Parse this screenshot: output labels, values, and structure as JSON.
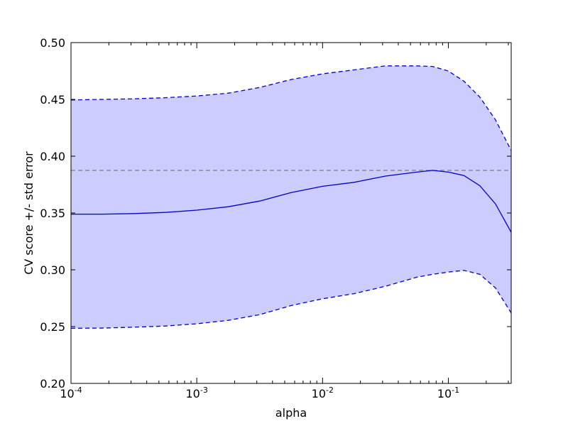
{
  "chart_data": {
    "type": "area",
    "title": "",
    "xlabel": "alpha",
    "ylabel": "CV score +/- std error",
    "x_scale": "log",
    "xlim": [
      0.0001,
      0.316
    ],
    "ylim": [
      0.2,
      0.5
    ],
    "grid": false,
    "legend": "none",
    "x_ticks": [
      {
        "value": 0.0001,
        "base": "10",
        "exp": "-4"
      },
      {
        "value": 0.001,
        "base": "10",
        "exp": "-3"
      },
      {
        "value": 0.01,
        "base": "10",
        "exp": "-2"
      },
      {
        "value": 0.1,
        "base": "10",
        "exp": "-1"
      }
    ],
    "y_ticks": [
      {
        "value": 0.2,
        "label": "0.20"
      },
      {
        "value": 0.25,
        "label": "0.25"
      },
      {
        "value": 0.3,
        "label": "0.30"
      },
      {
        "value": 0.35,
        "label": "0.35"
      },
      {
        "value": 0.4,
        "label": "0.40"
      },
      {
        "value": 0.45,
        "label": "0.45"
      },
      {
        "value": 0.5,
        "label": "0.50"
      }
    ],
    "x": [
      0.0001,
      0.000178,
      0.000316,
      0.000562,
      0.001,
      0.00178,
      0.00316,
      0.00562,
      0.01,
      0.0178,
      0.0316,
      0.0562,
      0.075,
      0.1,
      0.133,
      0.178,
      0.237,
      0.316
    ],
    "series": [
      {
        "role": "mean",
        "values": [
          0.349,
          0.349,
          0.3495,
          0.3505,
          0.3525,
          0.3555,
          0.3605,
          0.368,
          0.3735,
          0.377,
          0.3825,
          0.386,
          0.3875,
          0.386,
          0.383,
          0.374,
          0.358,
          0.333
        ]
      },
      {
        "role": "upper",
        "values": [
          0.4495,
          0.45,
          0.4505,
          0.4515,
          0.453,
          0.4555,
          0.4605,
          0.4675,
          0.4725,
          0.476,
          0.4795,
          0.4795,
          0.479,
          0.475,
          0.466,
          0.452,
          0.432,
          0.405
        ]
      },
      {
        "role": "lower",
        "values": [
          0.2485,
          0.2487,
          0.2495,
          0.2505,
          0.2525,
          0.2555,
          0.2605,
          0.2685,
          0.2745,
          0.279,
          0.2855,
          0.2935,
          0.296,
          0.298,
          0.2995,
          0.296,
          0.284,
          0.262
        ]
      }
    ],
    "reference_line": {
      "y": 0.3875
    },
    "colors": {
      "fill": "#ccccff",
      "line": "#0000cc",
      "reference": "#808080"
    }
  }
}
